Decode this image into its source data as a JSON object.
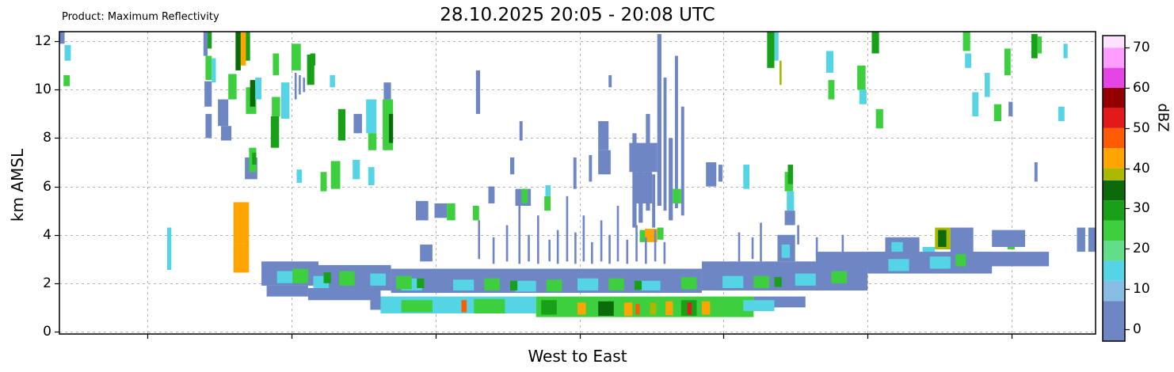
{
  "header": {
    "product_label": "Product: Maximum Reflectivity",
    "title": "28.10.2025 20:05 - 20:08 UTC"
  },
  "axes": {
    "ylabel": "km AMSL",
    "xlabel": "West to East",
    "y_ticks": [
      0,
      2,
      4,
      6,
      8,
      10,
      12
    ],
    "ylim": [
      -0.1,
      12.4
    ],
    "xlim": [
      0,
      1
    ],
    "x_gridlines": [
      0.085,
      0.224,
      0.363,
      0.502,
      0.641,
      0.78,
      0.919
    ],
    "grid_color": "#b3b3b3"
  },
  "colorbar": {
    "label": "dBZ",
    "ticks": [
      0,
      10,
      20,
      30,
      40,
      50,
      60,
      70
    ],
    "range": [
      -3,
      73
    ],
    "scale": [
      {
        "from": -3,
        "to": 7,
        "color": "#6e86c4"
      },
      {
        "from": 7,
        "to": 12,
        "color": "#87bde2"
      },
      {
        "from": 12,
        "to": 17,
        "color": "#55d4e6"
      },
      {
        "from": 17,
        "to": 22,
        "color": "#62dd8a"
      },
      {
        "from": 22,
        "to": 27,
        "color": "#3ecf3e"
      },
      {
        "from": 27,
        "to": 32,
        "color": "#18a018"
      },
      {
        "from": 32,
        "to": 37,
        "color": "#0b6b0b"
      },
      {
        "from": 37,
        "to": 40,
        "color": "#aab800"
      },
      {
        "from": 40,
        "to": 45,
        "color": "#ffa500"
      },
      {
        "from": 45,
        "to": 50,
        "color": "#ff5c00"
      },
      {
        "from": 50,
        "to": 55,
        "color": "#e31a1a"
      },
      {
        "from": 55,
        "to": 60,
        "color": "#940000"
      },
      {
        "from": 60,
        "to": 65,
        "color": "#e545e5"
      },
      {
        "from": 65,
        "to": 70,
        "color": "#ff9cff"
      },
      {
        "from": 70,
        "to": 73,
        "color": "#ffe2ff"
      }
    ]
  },
  "chart_data": {
    "type": "heatmap",
    "title": "28.10.2025 20:05 - 20:08 UTC",
    "product": "Maximum Reflectivity",
    "xlabel": "West to East",
    "ylabel": "km AMSL",
    "value_units": "dBZ",
    "segment_format": [
      "x0_frac",
      "x1_frac",
      "y0_km",
      "y1_km",
      "dbz"
    ],
    "segments": [
      [
        0.0,
        0.005,
        11.9,
        12.4,
        5
      ],
      [
        0.005,
        0.011,
        11.2,
        11.85,
        13
      ],
      [
        0.004,
        0.01,
        10.15,
        10.6,
        24
      ],
      [
        0.104,
        0.108,
        2.55,
        4.3,
        12
      ],
      [
        0.139,
        0.143,
        11.4,
        12.4,
        5
      ],
      [
        0.143,
        0.147,
        11.7,
        12.4,
        31
      ],
      [
        0.141,
        0.147,
        10.4,
        11.4,
        24
      ],
      [
        0.147,
        0.151,
        10.3,
        11.3,
        13
      ],
      [
        0.14,
        0.147,
        9.3,
        10.35,
        5
      ],
      [
        0.141,
        0.147,
        8.0,
        9.0,
        5
      ],
      [
        0.153,
        0.163,
        8.5,
        9.6,
        5
      ],
      [
        0.156,
        0.166,
        7.9,
        8.5,
        6
      ],
      [
        0.163,
        0.171,
        9.6,
        10.65,
        26
      ],
      [
        0.17,
        0.175,
        10.8,
        12.4,
        33
      ],
      [
        0.175,
        0.18,
        11.0,
        12.4,
        41
      ],
      [
        0.18,
        0.184,
        11.2,
        12.4,
        30
      ],
      [
        0.168,
        0.183,
        2.44,
        3.6,
        42
      ],
      [
        0.168,
        0.183,
        3.6,
        5.35,
        41
      ],
      [
        0.18,
        0.19,
        9.0,
        10.1,
        24
      ],
      [
        0.184,
        0.189,
        9.3,
        10.4,
        32
      ],
      [
        0.189,
        0.195,
        9.6,
        10.5,
        14
      ],
      [
        0.179,
        0.191,
        6.3,
        7.2,
        5
      ],
      [
        0.183,
        0.19,
        6.6,
        7.6,
        26
      ],
      [
        0.186,
        0.19,
        6.9,
        7.4,
        31
      ],
      [
        0.204,
        0.212,
        7.6,
        8.9,
        31
      ],
      [
        0.205,
        0.213,
        8.9,
        9.7,
        24
      ],
      [
        0.206,
        0.212,
        10.6,
        11.5,
        25
      ],
      [
        0.214,
        0.222,
        8.8,
        10.3,
        13
      ],
      [
        0.224,
        0.233,
        10.8,
        11.9,
        25
      ],
      [
        0.227,
        0.229,
        9.6,
        10.7,
        4
      ],
      [
        0.231,
        0.233,
        9.8,
        10.6,
        4
      ],
      [
        0.235,
        0.237,
        9.9,
        10.5,
        4
      ],
      [
        0.229,
        0.234,
        6.15,
        6.7,
        13
      ],
      [
        0.239,
        0.246,
        10.2,
        11.45,
        27
      ],
      [
        0.242,
        0.247,
        11.0,
        11.5,
        31
      ],
      [
        0.261,
        0.266,
        10.1,
        10.6,
        13
      ],
      [
        0.252,
        0.258,
        5.8,
        6.6,
        24
      ],
      [
        0.262,
        0.271,
        5.9,
        7.05,
        26
      ],
      [
        0.269,
        0.276,
        7.9,
        9.2,
        31
      ],
      [
        0.283,
        0.29,
        6.3,
        7.1,
        13
      ],
      [
        0.284,
        0.292,
        8.2,
        9.0,
        5
      ],
      [
        0.296,
        0.306,
        8.2,
        9.6,
        14
      ],
      [
        0.298,
        0.306,
        7.5,
        8.2,
        24
      ],
      [
        0.298,
        0.304,
        6.05,
        6.8,
        13
      ],
      [
        0.312,
        0.322,
        7.5,
        9.6,
        26
      ],
      [
        0.318,
        0.322,
        7.8,
        9.0,
        32
      ],
      [
        0.313,
        0.32,
        9.6,
        10.3,
        5
      ],
      [
        0.344,
        0.356,
        4.6,
        5.4,
        5
      ],
      [
        0.348,
        0.36,
        2.9,
        3.6,
        5
      ],
      [
        0.362,
        0.374,
        4.7,
        5.3,
        5
      ],
      [
        0.374,
        0.382,
        4.6,
        5.3,
        24
      ],
      [
        0.399,
        0.405,
        4.6,
        5.2,
        25
      ],
      [
        0.402,
        0.406,
        9.0,
        10.8,
        5
      ],
      [
        0.414,
        0.42,
        5.3,
        6.0,
        5
      ],
      [
        0.435,
        0.439,
        6.5,
        7.2,
        5
      ],
      [
        0.444,
        0.447,
        7.9,
        8.7,
        4
      ],
      [
        0.44,
        0.455,
        5.2,
        5.9,
        5
      ],
      [
        0.446,
        0.452,
        5.3,
        5.9,
        24
      ],
      [
        0.468,
        0.474,
        5.0,
        5.6,
        25
      ],
      [
        0.469,
        0.474,
        5.6,
        6.05,
        13
      ],
      [
        0.496,
        0.499,
        5.9,
        7.2,
        4
      ],
      [
        0.511,
        0.514,
        6.2,
        7.3,
        4
      ],
      [
        0.52,
        0.532,
        6.5,
        7.5,
        5
      ],
      [
        0.52,
        0.53,
        7.5,
        8.7,
        5
      ],
      [
        0.53,
        0.533,
        10.1,
        10.6,
        4
      ],
      [
        0.55,
        0.577,
        6.6,
        7.8,
        6
      ],
      [
        0.555,
        0.572,
        5.3,
        6.6,
        5
      ],
      [
        0.553,
        0.557,
        4.3,
        8.2,
        5
      ],
      [
        0.559,
        0.563,
        4.5,
        7.4,
        5
      ],
      [
        0.566,
        0.57,
        5.0,
        9.0,
        5
      ],
      [
        0.572,
        0.575,
        4.3,
        6.5,
        4
      ],
      [
        0.577,
        0.581,
        5.2,
        12.3,
        4
      ],
      [
        0.583,
        0.586,
        5.0,
        10.5,
        4
      ],
      [
        0.588,
        0.592,
        4.6,
        8.0,
        5
      ],
      [
        0.594,
        0.597,
        5.1,
        11.4,
        4
      ],
      [
        0.6,
        0.603,
        4.8,
        9.3,
        4
      ],
      [
        0.592,
        0.6,
        5.3,
        5.9,
        24
      ],
      [
        0.56,
        0.566,
        3.7,
        4.2,
        26
      ],
      [
        0.565,
        0.577,
        3.7,
        4.25,
        41
      ],
      [
        0.577,
        0.583,
        3.8,
        4.3,
        22
      ],
      [
        0.624,
        0.634,
        6.0,
        7.0,
        5
      ],
      [
        0.636,
        0.64,
        6.2,
        6.9,
        4
      ],
      [
        0.66,
        0.666,
        5.9,
        6.9,
        13
      ],
      [
        0.7,
        0.708,
        5.8,
        6.6,
        25
      ],
      [
        0.703,
        0.708,
        6.1,
        6.9,
        31
      ],
      [
        0.702,
        0.709,
        5.0,
        5.8,
        13
      ],
      [
        0.7,
        0.71,
        4.4,
        5.0,
        5
      ],
      [
        0.695,
        0.697,
        10.2,
        11.2,
        38
      ],
      [
        0.683,
        0.69,
        10.9,
        12.4,
        27
      ],
      [
        0.69,
        0.694,
        11.2,
        12.4,
        14
      ],
      [
        0.74,
        0.747,
        10.7,
        11.6,
        13
      ],
      [
        0.742,
        0.748,
        9.6,
        10.4,
        24
      ],
      [
        0.77,
        0.778,
        10.0,
        11.0,
        25
      ],
      [
        0.772,
        0.779,
        9.4,
        10.0,
        13
      ],
      [
        0.784,
        0.791,
        11.5,
        12.4,
        31
      ],
      [
        0.788,
        0.795,
        8.4,
        9.2,
        26
      ],
      [
        0.872,
        0.879,
        11.6,
        12.4,
        26
      ],
      [
        0.874,
        0.88,
        10.9,
        11.5,
        13
      ],
      [
        0.881,
        0.887,
        8.9,
        9.9,
        13
      ],
      [
        0.893,
        0.898,
        9.7,
        10.7,
        13
      ],
      [
        0.902,
        0.909,
        8.7,
        9.4,
        25
      ],
      [
        0.912,
        0.918,
        10.6,
        11.7,
        25
      ],
      [
        0.916,
        0.92,
        8.9,
        9.5,
        5
      ],
      [
        0.938,
        0.944,
        11.3,
        12.3,
        31
      ],
      [
        0.944,
        0.948,
        11.5,
        12.2,
        25
      ],
      [
        0.941,
        0.944,
        6.2,
        7.0,
        4
      ],
      [
        0.964,
        0.97,
        8.7,
        9.3,
        13
      ],
      [
        0.969,
        0.973,
        11.3,
        11.9,
        13
      ],
      [
        0.915,
        0.922,
        3.4,
        4.0,
        24
      ],
      [
        0.693,
        0.71,
        2.9,
        4.0,
        5
      ],
      [
        0.697,
        0.705,
        3.05,
        3.6,
        13
      ],
      [
        0.712,
        0.714,
        3.6,
        4.4,
        4
      ],
      [
        0.797,
        0.83,
        2.9,
        3.9,
        5
      ],
      [
        0.803,
        0.814,
        3.1,
        3.7,
        13
      ],
      [
        0.833,
        0.845,
        2.9,
        3.5,
        13
      ],
      [
        0.845,
        0.86,
        3.4,
        4.3,
        37
      ],
      [
        0.848,
        0.856,
        3.5,
        4.2,
        33
      ],
      [
        0.86,
        0.882,
        2.9,
        4.3,
        5
      ],
      [
        0.9,
        0.932,
        3.5,
        4.2,
        5
      ],
      [
        0.982,
        0.99,
        3.3,
        4.3,
        5
      ],
      [
        0.993,
        1.0,
        3.3,
        4.3,
        5
      ],
      [
        0.195,
        0.25,
        1.9,
        2.9,
        5
      ],
      [
        0.2,
        0.24,
        1.45,
        1.9,
        5
      ],
      [
        0.24,
        0.31,
        1.3,
        1.8,
        5
      ],
      [
        0.25,
        0.32,
        1.7,
        2.75,
        5
      ],
      [
        0.32,
        0.62,
        1.6,
        2.6,
        5
      ],
      [
        0.62,
        0.78,
        1.7,
        2.9,
        5
      ],
      [
        0.73,
        0.8,
        2.6,
        3.3,
        5
      ],
      [
        0.78,
        0.9,
        2.4,
        3.3,
        5
      ],
      [
        0.88,
        0.955,
        2.7,
        3.3,
        4
      ],
      [
        0.21,
        0.225,
        2.0,
        2.5,
        13
      ],
      [
        0.245,
        0.26,
        1.8,
        2.3,
        13
      ],
      [
        0.3,
        0.315,
        1.9,
        2.4,
        13
      ],
      [
        0.33,
        0.35,
        1.7,
        2.2,
        13
      ],
      [
        0.38,
        0.4,
        1.7,
        2.15,
        13
      ],
      [
        0.44,
        0.46,
        1.65,
        2.1,
        13
      ],
      [
        0.5,
        0.52,
        1.7,
        2.2,
        13
      ],
      [
        0.56,
        0.58,
        1.7,
        2.1,
        13
      ],
      [
        0.64,
        0.66,
        1.8,
        2.3,
        13
      ],
      [
        0.71,
        0.73,
        1.9,
        2.4,
        13
      ],
      [
        0.8,
        0.82,
        2.5,
        3.0,
        13
      ],
      [
        0.84,
        0.86,
        2.6,
        3.1,
        13
      ],
      [
        0.225,
        0.24,
        2.0,
        2.6,
        23
      ],
      [
        0.27,
        0.285,
        1.9,
        2.5,
        23
      ],
      [
        0.325,
        0.34,
        1.75,
        2.3,
        23
      ],
      [
        0.41,
        0.425,
        1.7,
        2.2,
        23
      ],
      [
        0.47,
        0.485,
        1.65,
        2.15,
        23
      ],
      [
        0.53,
        0.545,
        1.7,
        2.2,
        23
      ],
      [
        0.6,
        0.615,
        1.75,
        2.25,
        23
      ],
      [
        0.67,
        0.685,
        1.8,
        2.3,
        23
      ],
      [
        0.745,
        0.76,
        2.0,
        2.5,
        23
      ],
      [
        0.865,
        0.875,
        2.7,
        3.2,
        23
      ],
      [
        0.255,
        0.262,
        2.0,
        2.45,
        31
      ],
      [
        0.345,
        0.352,
        1.8,
        2.2,
        31
      ],
      [
        0.435,
        0.442,
        1.7,
        2.1,
        31
      ],
      [
        0.555,
        0.562,
        1.72,
        2.1,
        31
      ],
      [
        0.69,
        0.697,
        1.85,
        2.25,
        31
      ],
      [
        0.3,
        0.32,
        0.9,
        1.45,
        5
      ],
      [
        0.31,
        0.46,
        0.75,
        1.45,
        14
      ],
      [
        0.46,
        0.67,
        0.6,
        1.45,
        23
      ],
      [
        0.33,
        0.36,
        0.8,
        1.3,
        24
      ],
      [
        0.4,
        0.43,
        0.75,
        1.35,
        26
      ],
      [
        0.388,
        0.393,
        0.8,
        1.3,
        48
      ],
      [
        0.465,
        0.48,
        0.7,
        1.3,
        31
      ],
      [
        0.52,
        0.535,
        0.65,
        1.25,
        32
      ],
      [
        0.6,
        0.615,
        0.65,
        1.3,
        31
      ],
      [
        0.5,
        0.508,
        0.7,
        1.2,
        41
      ],
      [
        0.545,
        0.553,
        0.65,
        1.2,
        42
      ],
      [
        0.585,
        0.592,
        0.68,
        1.25,
        41
      ],
      [
        0.62,
        0.628,
        0.7,
        1.25,
        41
      ],
      [
        0.556,
        0.56,
        0.7,
        1.15,
        47
      ],
      [
        0.606,
        0.61,
        0.7,
        1.2,
        52
      ],
      [
        0.57,
        0.576,
        0.7,
        1.2,
        38
      ],
      [
        0.67,
        0.72,
        1.0,
        1.45,
        5
      ],
      [
        0.66,
        0.69,
        0.85,
        1.3,
        13
      ],
      [
        0.404,
        0.406,
        3.0,
        4.6,
        4
      ],
      [
        0.418,
        0.42,
        2.8,
        3.9,
        4
      ],
      [
        0.431,
        0.433,
        2.9,
        4.4,
        4
      ],
      [
        0.443,
        0.445,
        2.8,
        5.3,
        4
      ],
      [
        0.452,
        0.454,
        2.9,
        4.0,
        4
      ],
      [
        0.461,
        0.463,
        2.8,
        4.8,
        4
      ],
      [
        0.472,
        0.474,
        2.9,
        3.8,
        4
      ],
      [
        0.48,
        0.482,
        2.8,
        4.2,
        4
      ],
      [
        0.489,
        0.491,
        2.9,
        5.6,
        4
      ],
      [
        0.497,
        0.499,
        2.8,
        4.1,
        4
      ],
      [
        0.505,
        0.507,
        2.9,
        4.8,
        4
      ],
      [
        0.513,
        0.515,
        2.8,
        3.7,
        4
      ],
      [
        0.522,
        0.524,
        2.9,
        4.6,
        4
      ],
      [
        0.53,
        0.532,
        2.8,
        4.0,
        4
      ],
      [
        0.538,
        0.54,
        2.9,
        5.2,
        4
      ],
      [
        0.547,
        0.549,
        2.8,
        3.8,
        4
      ],
      [
        0.556,
        0.558,
        2.9,
        4.4,
        4
      ],
      [
        0.565,
        0.567,
        2.8,
        3.9,
        4
      ],
      [
        0.574,
        0.576,
        2.9,
        4.2,
        4
      ],
      [
        0.583,
        0.585,
        2.8,
        3.7,
        4
      ],
      [
        0.655,
        0.657,
        2.9,
        4.1,
        4
      ],
      [
        0.668,
        0.67,
        3.0,
        3.9,
        4
      ],
      [
        0.676,
        0.678,
        2.9,
        4.5,
        4
      ],
      [
        0.73,
        0.732,
        3.1,
        3.9,
        4
      ],
      [
        0.755,
        0.757,
        3.2,
        4.0,
        4
      ]
    ]
  }
}
